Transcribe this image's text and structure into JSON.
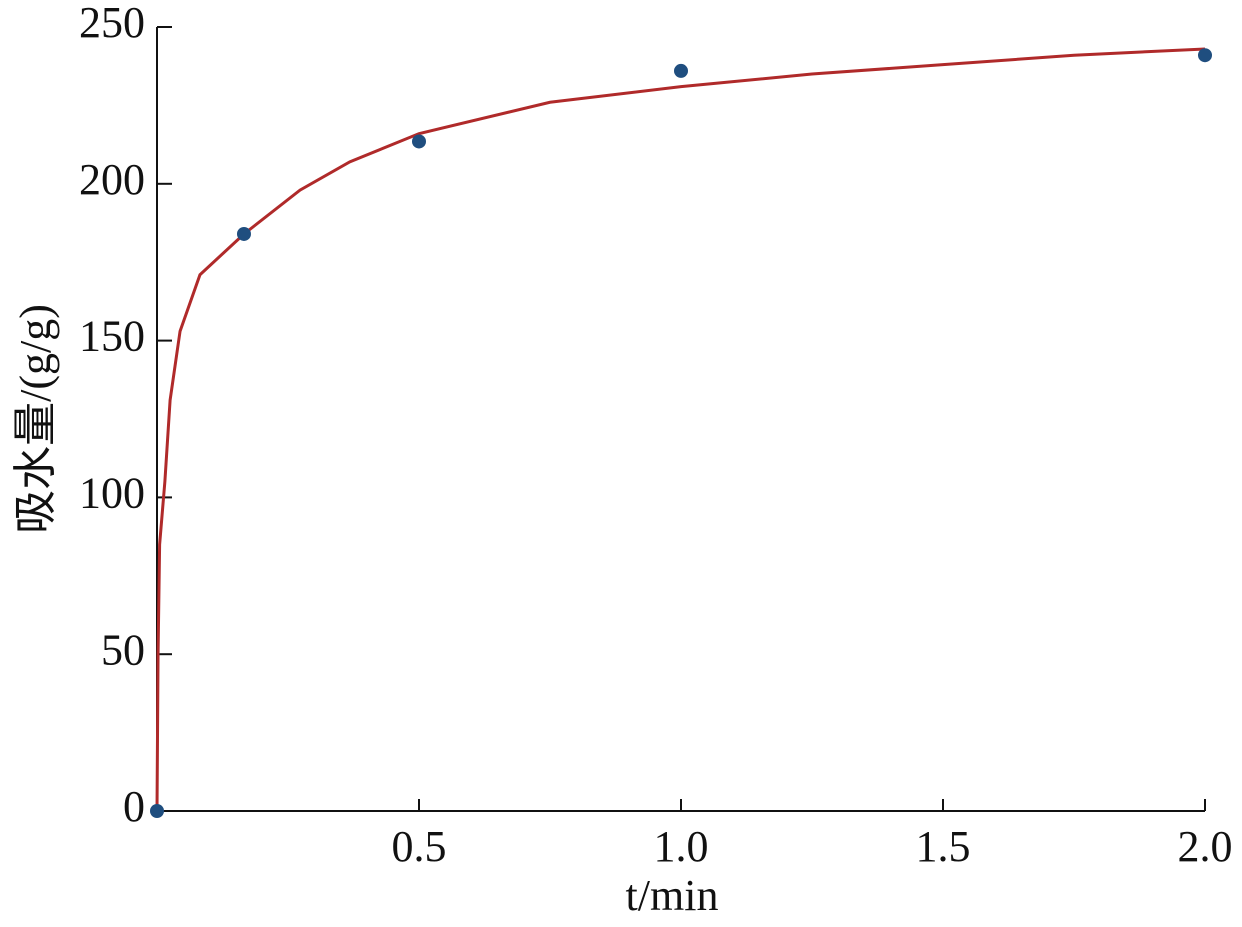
{
  "chart_data": {
    "type": "scatter",
    "x_label": "t/min",
    "y_label": "吸水量/(g/g)",
    "xlim": [
      0,
      2.0
    ],
    "ylim": [
      0,
      250
    ],
    "xticks": [
      0.5,
      {
        "value": 1.0,
        "label": "1.0"
      },
      1.5,
      {
        "value": 2.0,
        "label": "2.0"
      }
    ],
    "yticks": [
      0,
      50,
      100,
      150,
      200,
      250
    ],
    "series": [
      {
        "color": "#1f4e7f",
        "x": [
          0,
          0.166,
          0.5,
          1.0,
          2.0
        ],
        "values": [
          0,
          184,
          213.5,
          236,
          241
        ]
      },
      {
        "color": "#b02a2a",
        "type": "line",
        "x": [
          0,
          0.002,
          0.005,
          0.015,
          0.025,
          0.044,
          0.082,
          0.166,
          0.273,
          0.368,
          0.5,
          0.75,
          1.0,
          1.25,
          1.5,
          1.75,
          2.0
        ],
        "values": [
          0,
          50,
          85,
          105,
          131,
          153,
          171,
          184,
          198,
          207,
          216,
          226,
          231,
          235,
          238,
          241,
          243
        ]
      }
    ]
  }
}
